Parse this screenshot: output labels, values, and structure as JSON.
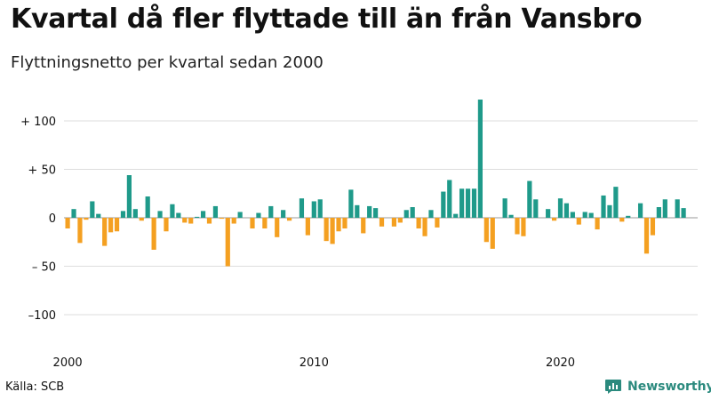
{
  "title": "Kvartal då fler flyttade till än från Vansbro",
  "subtitle": "Flyttningsnetto per kvartal sedan 2000",
  "source": "Källa: SCB",
  "brand": "Newsworthy",
  "colors": {
    "positive": "#1f9a8a",
    "negative": "#f4a021",
    "grid": "#dddddd",
    "zero": "#999999",
    "brand": "#2b8a7e"
  },
  "chart_data": {
    "type": "bar",
    "title": "Kvartal då fler flyttade till än från Vansbro",
    "subtitle": "Flyttningsnetto per kvartal sedan 2000",
    "ylabel": "",
    "xlabel": "",
    "ylim": [
      -130,
      130
    ],
    "yticks": [
      {
        "value": 100,
        "label": "+ 100"
      },
      {
        "value": 50,
        "label": "+  50"
      },
      {
        "value": 0,
        "label": "0"
      },
      {
        "value": -50,
        "label": "– 50"
      },
      {
        "value": -100,
        "label": "–100"
      }
    ],
    "xticks": [
      {
        "year": 2000,
        "label": "2000"
      },
      {
        "year": 2010,
        "label": "2010"
      },
      {
        "year": 2020,
        "label": "2020"
      }
    ],
    "start_year": 2000,
    "values": [
      -11,
      9,
      -26,
      -2,
      17,
      4,
      -29,
      -15,
      -14,
      7,
      44,
      9,
      -3,
      22,
      -33,
      7,
      -14,
      14,
      5,
      -5,
      -6,
      1,
      7,
      -6,
      12,
      -1,
      -50,
      -6,
      6,
      0,
      -11,
      5,
      -11,
      12,
      -20,
      8,
      -3,
      0,
      20,
      -18,
      17,
      19,
      -24,
      -27,
      -14,
      -11,
      29,
      13,
      -16,
      12,
      10,
      -9,
      0,
      -9,
      -5,
      8,
      11,
      -11,
      -19,
      8,
      -10,
      27,
      39,
      4,
      30,
      30,
      30,
      122,
      -25,
      -32,
      0,
      20,
      3,
      -17,
      -19,
      38,
      19,
      0,
      9,
      -3,
      20,
      15,
      6,
      -7,
      6,
      5,
      -12,
      23,
      13,
      32,
      -4,
      2,
      0,
      15,
      -37,
      -18,
      11,
      19,
      0,
      19,
      10
    ]
  }
}
